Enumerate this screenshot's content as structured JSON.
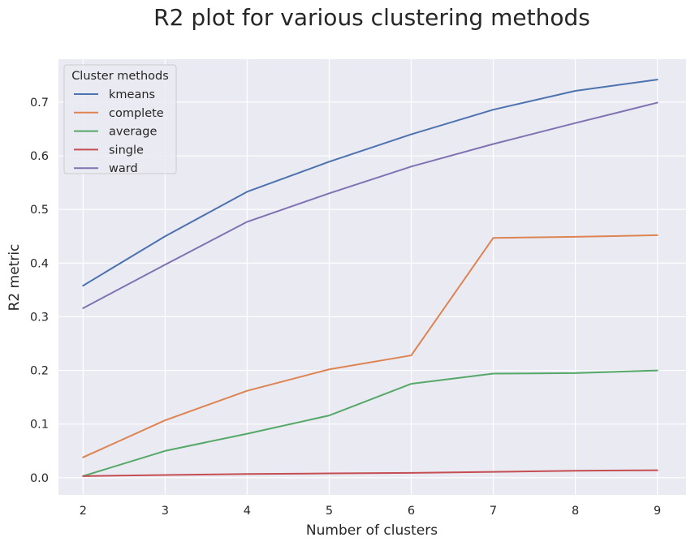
{
  "chart_data": {
    "type": "line",
    "title": "R2 plot for various clustering methods",
    "xlabel": "Number of clusters",
    "ylabel": "R2 metric",
    "x": [
      2,
      3,
      4,
      5,
      6,
      7,
      8,
      9
    ],
    "xlim": [
      1.7,
      9.35
    ],
    "ylim": [
      -0.032,
      0.78
    ],
    "yticks": [
      "0.0",
      "0.1",
      "0.2",
      "0.3",
      "0.4",
      "0.5",
      "0.6",
      "0.7"
    ],
    "xticks": [
      "2",
      "3",
      "4",
      "5",
      "6",
      "7",
      "8",
      "9"
    ],
    "grid": true,
    "background": "#eaeaf2",
    "legend": {
      "title": "Cluster methods",
      "position": "upper-left"
    },
    "series": [
      {
        "name": "kmeans",
        "color": "#4c72b0",
        "values": [
          0.358,
          0.45,
          0.533,
          0.589,
          0.64,
          0.686,
          0.721,
          0.742
        ]
      },
      {
        "name": "complete",
        "color": "#dd8452",
        "values": [
          0.038,
          0.107,
          0.162,
          0.202,
          0.228,
          0.447,
          0.449,
          0.452
        ]
      },
      {
        "name": "average",
        "color": "#55a868",
        "values": [
          0.003,
          0.05,
          0.082,
          0.116,
          0.175,
          0.194,
          0.195,
          0.2
        ]
      },
      {
        "name": "single",
        "color": "#c44e52",
        "values": [
          0.003,
          0.005,
          0.007,
          0.008,
          0.009,
          0.011,
          0.013,
          0.014
        ]
      },
      {
        "name": "ward",
        "color": "#8172b3",
        "values": [
          0.316,
          0.397,
          0.477,
          0.53,
          0.58,
          0.622,
          0.661,
          0.699
        ]
      }
    ]
  }
}
